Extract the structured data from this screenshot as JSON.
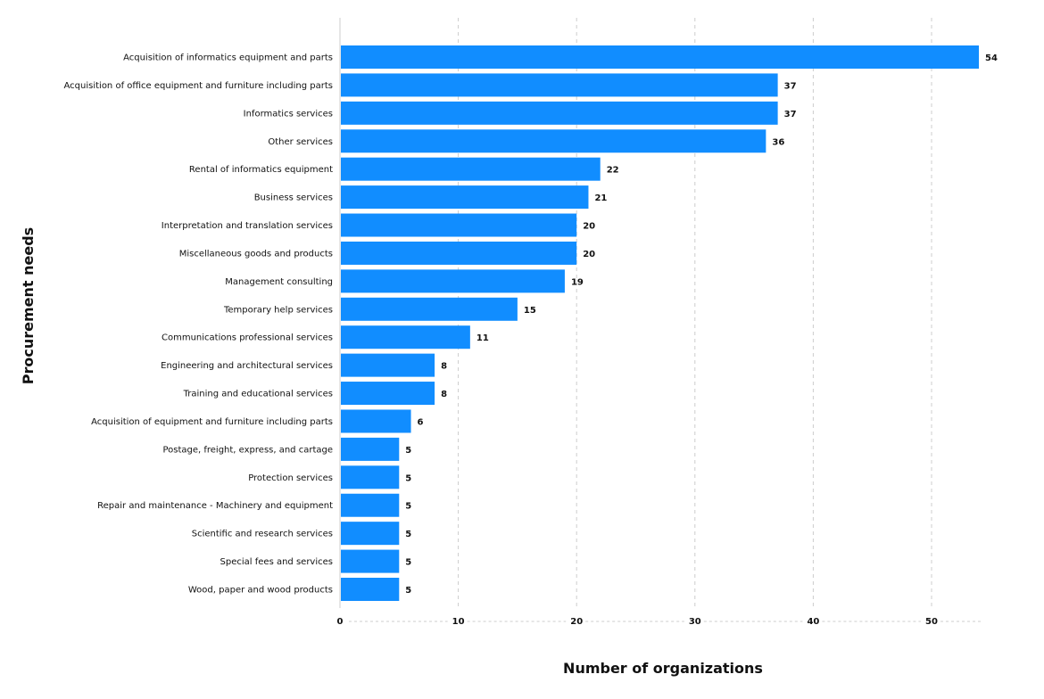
{
  "chart_data": {
    "type": "bar",
    "orientation": "horizontal",
    "xlabel": "Number of organizations",
    "ylabel": "Procurement needs",
    "xlim": [
      0,
      54
    ],
    "xticks": [
      0,
      10,
      20,
      30,
      40,
      50
    ],
    "grid": "vertical dashed",
    "bar_color": "#118DFF",
    "categories": [
      "Acquisition of informatics equipment and parts",
      "Acquisition of office equipment and furniture including parts",
      "Informatics services",
      "Other services",
      "Rental of informatics equipment",
      "Business services",
      "Interpretation and translation services",
      "Miscellaneous goods and products",
      "Management consulting",
      "Temporary help services",
      "Communications professional services",
      "Engineering and architectural services",
      "Training and educational services",
      "Acquisition of equipment and furniture including parts",
      "Postage, freight, express, and cartage",
      "Protection services",
      "Repair and maintenance - Machinery and equipment",
      "Scientific and research services",
      "Special fees and services",
      "Wood, paper and wood products"
    ],
    "values": [
      54,
      37,
      37,
      36,
      22,
      21,
      20,
      20,
      19,
      15,
      11,
      8,
      8,
      6,
      5,
      5,
      5,
      5,
      5,
      5
    ]
  }
}
